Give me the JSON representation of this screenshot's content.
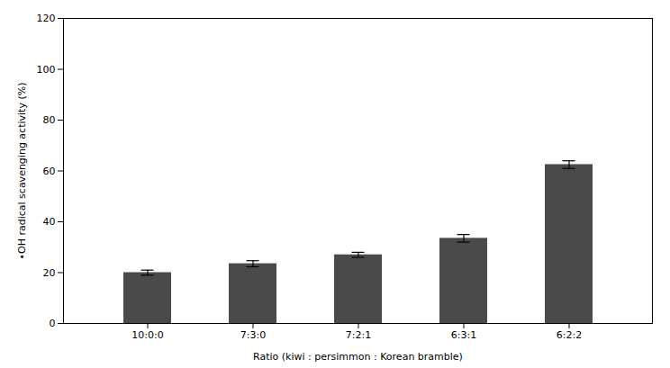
{
  "chart_data": {
    "type": "bar",
    "categories": [
      "10:0:0",
      "7:3:0",
      "7:2:1",
      "6:3:1",
      "6:2:2"
    ],
    "values": [
      20.0,
      23.5,
      27.0,
      33.5,
      62.5
    ],
    "errors": [
      1.0,
      1.2,
      1.0,
      1.5,
      1.5
    ],
    "color": "#4a4a4a",
    "xlabel": "Ratio (kiwi : persimmon : Korean bramble)",
    "ylabel": "•OH radical scavenging activity (%)",
    "ylim": [
      0,
      120
    ],
    "yticks": [
      0,
      20,
      40,
      60,
      80,
      100,
      120
    ],
    "grid": false
  }
}
